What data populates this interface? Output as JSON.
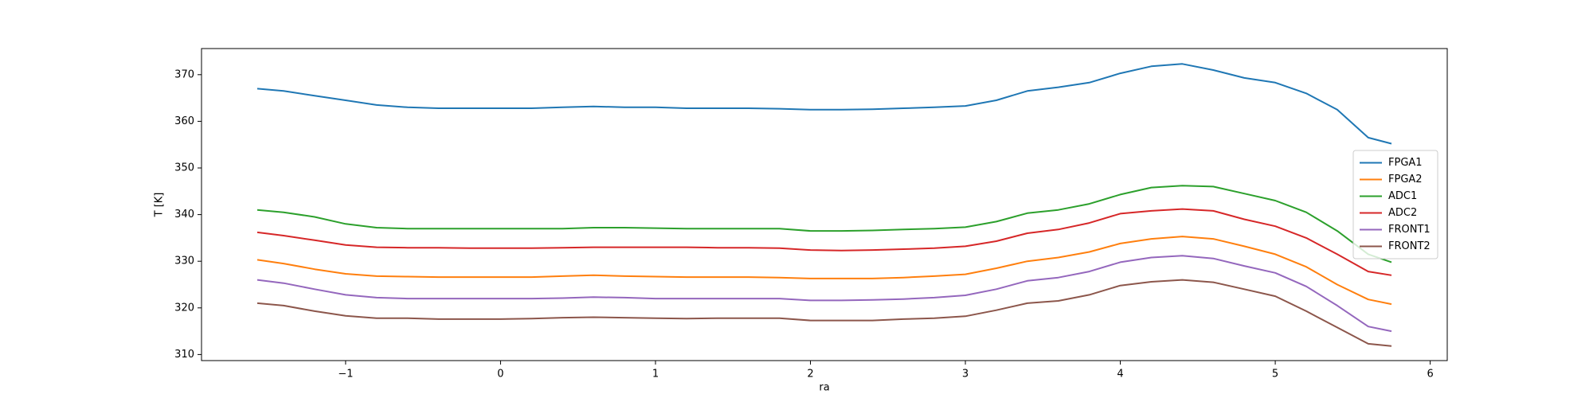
{
  "chart_data": {
    "type": "line",
    "xlabel": "ra",
    "ylabel": "T [K]",
    "x": [
      -1.57,
      -1.4,
      -1.2,
      -1.0,
      -0.8,
      -0.6,
      -0.4,
      -0.2,
      0,
      0.2,
      0.4,
      0.6,
      0.8,
      1.0,
      1.2,
      1.4,
      1.6,
      1.8,
      2.0,
      2.2,
      2.4,
      2.6,
      2.8,
      3.0,
      3.2,
      3.4,
      3.6,
      3.8,
      4.0,
      4.2,
      4.4,
      4.6,
      4.8,
      5.0,
      5.2,
      5.4,
      5.6,
      5.75
    ],
    "series": [
      {
        "name": "FPGA1",
        "color": "#1f77b4",
        "values": [
          367,
          366.5,
          365.5,
          364.5,
          363.5,
          363,
          362.8,
          362.8,
          362.8,
          362.8,
          363,
          363.2,
          363,
          363,
          362.8,
          362.8,
          362.8,
          362.7,
          362.5,
          362.5,
          362.6,
          362.8,
          363,
          363.3,
          364.5,
          366.5,
          367.3,
          368.3,
          370.3,
          371.8,
          372.3,
          371,
          369.3,
          368.3,
          366,
          362.5,
          356.5,
          355.2
        ]
      },
      {
        "name": "FPGA2",
        "color": "#ff7f0e",
        "values": [
          330.3,
          329.5,
          328.3,
          327.3,
          326.8,
          326.7,
          326.6,
          326.6,
          326.6,
          326.6,
          326.8,
          327,
          326.8,
          326.7,
          326.6,
          326.6,
          326.6,
          326.5,
          326.3,
          326.3,
          326.3,
          326.5,
          326.8,
          327.2,
          328.5,
          330,
          330.8,
          332,
          333.8,
          334.8,
          335.3,
          334.8,
          333.2,
          331.5,
          328.8,
          325,
          321.8,
          320.8
        ]
      },
      {
        "name": "ADC1",
        "color": "#2ca02c",
        "values": [
          341,
          340.5,
          339.5,
          338,
          337.2,
          337,
          337,
          337,
          337,
          337,
          337,
          337.2,
          337.2,
          337.1,
          337,
          337,
          337,
          337,
          336.5,
          336.5,
          336.6,
          336.8,
          337,
          337.3,
          338.5,
          340.3,
          341,
          342.3,
          344.3,
          345.8,
          346.2,
          346,
          344.5,
          343,
          340.5,
          336.5,
          331.5,
          329.8
        ]
      },
      {
        "name": "ADC2",
        "color": "#d62728",
        "values": [
          336.2,
          335.5,
          334.5,
          333.5,
          333,
          332.9,
          332.9,
          332.8,
          332.8,
          332.8,
          332.9,
          333,
          333,
          333,
          333,
          332.9,
          332.9,
          332.8,
          332.4,
          332.3,
          332.4,
          332.6,
          332.8,
          333.2,
          334.3,
          336,
          336.8,
          338.2,
          340.2,
          340.8,
          341.2,
          340.8,
          339,
          337.5,
          335,
          331.5,
          327.8,
          327
        ]
      },
      {
        "name": "FRONT1",
        "color": "#9467bd",
        "values": [
          326,
          325.3,
          324,
          322.8,
          322.2,
          322,
          322,
          322,
          322,
          322,
          322.1,
          322.3,
          322.2,
          322,
          322,
          322,
          322,
          322,
          321.6,
          321.6,
          321.7,
          321.9,
          322.2,
          322.7,
          324,
          325.8,
          326.5,
          327.8,
          329.8,
          330.8,
          331.2,
          330.6,
          329,
          327.5,
          324.6,
          320.5,
          316,
          315
        ]
      },
      {
        "name": "FRONT2",
        "color": "#8c564b",
        "values": [
          321,
          320.5,
          319.3,
          318.3,
          317.8,
          317.8,
          317.6,
          317.6,
          317.6,
          317.7,
          317.9,
          318,
          317.9,
          317.8,
          317.7,
          317.8,
          317.8,
          317.8,
          317.3,
          317.3,
          317.3,
          317.6,
          317.8,
          318.2,
          319.5,
          321,
          321.5,
          322.8,
          324.8,
          325.6,
          326,
          325.5,
          324,
          322.5,
          319.3,
          315.8,
          312.3,
          311.8
        ]
      }
    ],
    "xlim": [
      -1.93,
      6.11
    ],
    "xticks": [
      {
        "value": -1,
        "label": "−1"
      },
      0,
      1,
      2,
      3,
      4,
      5,
      6
    ],
    "ylim": [
      308.7,
      375.6
    ],
    "yticks": [
      310,
      320,
      330,
      340,
      350,
      360,
      370
    ],
    "legend": "center right"
  }
}
